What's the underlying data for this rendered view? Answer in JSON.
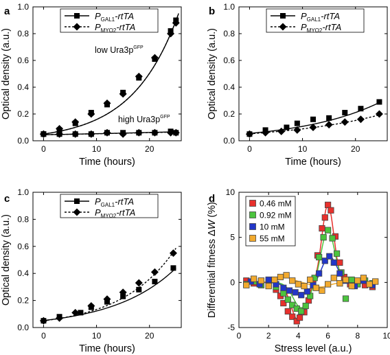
{
  "chart_data": [
    {
      "panel": "a",
      "type": "line",
      "xlabel": "Time (hours)",
      "ylabel": "Optical density (a.u.)",
      "xlim": [
        -2,
        26
      ],
      "ylim": [
        0,
        1.0
      ],
      "xticks": [
        0,
        10,
        20
      ],
      "yticks": [
        0.0,
        0.2,
        0.4,
        0.6,
        0.8,
        1.0
      ],
      "legend": [
        {
          "main": "P",
          "sub": "GAL1",
          "rest": "-rtTA",
          "marker": "square",
          "style": "solid"
        },
        {
          "main": "P",
          "sub": "MYO2",
          "rest": "-rtTA",
          "marker": "diamond",
          "style": "dashed"
        }
      ],
      "annotations": [
        {
          "text": "low Ura3p",
          "sup": "GFP"
        },
        {
          "text": "high Ura3p",
          "sup": "GFP"
        }
      ],
      "series": [
        {
          "name": "PGAL1-rtTA low",
          "marker": "square",
          "x": [
            0,
            3,
            6,
            9,
            12,
            15,
            18,
            21,
            24,
            25
          ],
          "y": [
            0.05,
            0.08,
            0.13,
            0.21,
            0.27,
            0.36,
            0.47,
            0.61,
            0.82,
            0.9
          ]
        },
        {
          "name": "PMYO2-rtTA low",
          "marker": "diamond",
          "x": [
            0,
            3,
            6,
            9,
            12,
            15,
            18,
            21,
            24,
            25
          ],
          "y": [
            0.05,
            0.09,
            0.14,
            0.2,
            0.28,
            0.35,
            0.48,
            0.62,
            0.8,
            0.88
          ]
        },
        {
          "name": "PGAL1-rtTA high",
          "marker": "square",
          "x": [
            0,
            3,
            6,
            9,
            12,
            15,
            18,
            21,
            24,
            25
          ],
          "y": [
            0.05,
            0.05,
            0.05,
            0.05,
            0.06,
            0.06,
            0.06,
            0.06,
            0.07,
            0.06
          ]
        },
        {
          "name": "PMYO2-rtTA high",
          "marker": "diamond",
          "x": [
            0,
            3,
            6,
            9,
            12,
            15,
            18,
            21,
            24,
            25
          ],
          "y": [
            0.05,
            0.05,
            0.05,
            0.05,
            0.06,
            0.05,
            0.06,
            0.06,
            0.06,
            0.06
          ]
        }
      ],
      "fits": [
        {
          "style": "solid",
          "a": 0.05,
          "k": 0.1155,
          "x": [
            0,
            25.5
          ]
        },
        {
          "style": "dashed",
          "a": 0.05,
          "k": 0.1155,
          "x": [
            0,
            25.5
          ]
        },
        {
          "style": "solid",
          "a": 0.045,
          "k": 0.016,
          "x": [
            0,
            25.5
          ]
        },
        {
          "style": "dashed",
          "a": 0.045,
          "k": 0.015,
          "x": [
            0,
            25.5
          ]
        }
      ]
    },
    {
      "panel": "b",
      "type": "line",
      "xlabel": "Time (hours)",
      "ylabel": "Optical density (a.u.)",
      "xlim": [
        -2,
        26
      ],
      "ylim": [
        0,
        1.0
      ],
      "xticks": [
        0,
        10,
        20
      ],
      "yticks": [
        0.0,
        0.2,
        0.4,
        0.6,
        0.8,
        1.0
      ],
      "legend": [
        {
          "main": "P",
          "sub": "GAL1",
          "rest": "-rtTA",
          "marker": "square",
          "style": "solid"
        },
        {
          "main": "P",
          "sub": "MYO2",
          "rest": "-rtTA",
          "marker": "diamond",
          "style": "dashed"
        }
      ],
      "series": [
        {
          "name": "PGAL1-rtTA",
          "marker": "square",
          "x": [
            0,
            3,
            7,
            9,
            12,
            15,
            18,
            21,
            24.5
          ],
          "y": [
            0.05,
            0.08,
            0.1,
            0.13,
            0.16,
            0.17,
            0.21,
            0.24,
            0.29
          ]
        },
        {
          "name": "PMYO2-rtTA",
          "marker": "diamond",
          "x": [
            0,
            3,
            6,
            9,
            12,
            15,
            18,
            21,
            24.5
          ],
          "y": [
            0.05,
            0.06,
            0.07,
            0.08,
            0.1,
            0.12,
            0.14,
            0.16,
            0.2
          ]
        }
      ],
      "fits": [
        {
          "style": "solid",
          "a": 0.055,
          "k": 0.0672,
          "x": [
            0,
            25
          ]
        },
        {
          "style": "dashed",
          "a": 0.052,
          "k": 0.0535,
          "x": [
            0,
            25
          ]
        }
      ]
    },
    {
      "panel": "c",
      "type": "line",
      "xlabel": "Time (hours)",
      "ylabel": "Optical density (a.u.)",
      "xlim": [
        -2,
        26
      ],
      "ylim": [
        0,
        1.0
      ],
      "xticks": [
        0,
        10,
        20
      ],
      "yticks": [
        0.0,
        0.2,
        0.4,
        0.6,
        0.8,
        1.0
      ],
      "legend": [
        {
          "main": "P",
          "sub": "GAL1",
          "rest": "-rtTA",
          "marker": "square",
          "style": "solid"
        },
        {
          "main": "P",
          "sub": "MYO2",
          "rest": "-rtTA",
          "marker": "diamond",
          "style": "dashed"
        }
      ],
      "series": [
        {
          "name": "PGAL1-rtTA",
          "marker": "square",
          "x": [
            0,
            3,
            7,
            9,
            12,
            15,
            18,
            21,
            24.5
          ],
          "y": [
            0.05,
            0.08,
            0.11,
            0.15,
            0.19,
            0.23,
            0.28,
            0.34,
            0.44
          ]
        },
        {
          "name": "PMYO2-rtTA",
          "marker": "diamond",
          "x": [
            0,
            3,
            6,
            9,
            12,
            15,
            18,
            21,
            24.5
          ],
          "y": [
            0.05,
            0.07,
            0.11,
            0.16,
            0.21,
            0.26,
            0.33,
            0.41,
            0.55
          ]
        }
      ],
      "fits": [
        {
          "style": "solid",
          "a": 0.052,
          "k": 0.0854,
          "x": [
            0,
            25
          ]
        },
        {
          "style": "dashed",
          "a": 0.05,
          "k": 0.0985,
          "x": [
            0,
            25
          ]
        }
      ]
    },
    {
      "panel": "d",
      "type": "scatter",
      "xlabel": "Stress level (a.u.)",
      "ylabel": "Differential fitness ΔW (%)",
      "ylabel_prefix": "Differential fitness Δ",
      "ylabel_var": "W",
      "ylabel_suffix": " (%)",
      "xlim": [
        0,
        10
      ],
      "ylim": [
        -5,
        10
      ],
      "xticks": [
        0,
        2,
        4,
        6,
        8,
        10
      ],
      "yticks": [
        -5,
        0,
        5,
        10
      ],
      "legend": [
        "0.46 mM",
        "0.92 mM",
        "10 mM",
        "55 mM"
      ],
      "series": [
        {
          "name": "0.46 mM",
          "color": "#e8302c",
          "x": [
            0.5,
            1.0,
            1.5,
            2.0,
            2.5,
            2.8,
            3.0,
            3.3,
            3.6,
            3.9,
            4.1,
            4.4,
            4.7,
            5.0,
            5.3,
            5.6,
            5.8,
            6.0,
            6.2,
            6.5,
            6.8,
            7.1,
            7.5,
            8.0,
            8.5,
            9.0
          ],
          "y": [
            0.2,
            -0.1,
            0.1,
            -0.3,
            -0.8,
            -1.5,
            -2.3,
            -3.2,
            -3.8,
            -4.3,
            -3.9,
            -3.3,
            -2.0,
            0.3,
            3.0,
            6.0,
            7.2,
            8.6,
            8.0,
            5.1,
            2.2,
            0.6,
            -0.2,
            0.1,
            -0.3,
            -0.5
          ]
        },
        {
          "name": "0.92 mM",
          "color": "#4cc43e",
          "x": [
            0.5,
            1.0,
            1.5,
            2.0,
            2.5,
            3.0,
            3.3,
            3.6,
            3.9,
            4.2,
            4.5,
            4.8,
            5.1,
            5.4,
            5.7,
            6.0,
            6.3,
            6.6,
            6.9,
            7.2,
            7.6,
            8.0,
            8.5,
            9.0
          ],
          "y": [
            -0.2,
            0.1,
            -0.3,
            0.2,
            -0.5,
            -1.2,
            -1.9,
            -2.5,
            -2.9,
            -3.2,
            -2.6,
            -1.5,
            0.5,
            2.8,
            5.0,
            5.8,
            4.9,
            3.2,
            1.1,
            -1.8,
            0.3,
            -0.2,
            0.2,
            -0.1
          ]
        },
        {
          "name": "10 mM",
          "color": "#2236c8",
          "x": [
            0.8,
            1.4,
            2.0,
            2.5,
            3.0,
            3.4,
            3.8,
            4.2,
            4.6,
            5.0,
            5.4,
            5.8,
            6.1,
            6.4,
            6.8,
            7.2,
            7.8,
            8.4,
            9.0
          ],
          "y": [
            0.1,
            -0.2,
            0.3,
            -0.2,
            -0.6,
            -0.9,
            -1.1,
            -1.4,
            -1.0,
            -0.3,
            1.0,
            2.4,
            2.9,
            2.2,
            1.0,
            0.2,
            -0.4,
            0.2,
            -0.3
          ]
        },
        {
          "name": "55 mM",
          "color": "#f2aa2e",
          "x": [
            0.5,
            1.0,
            1.5,
            2.0,
            2.4,
            2.8,
            3.2,
            3.6,
            4.0,
            4.4,
            4.8,
            5.2,
            5.6,
            6.0,
            6.4,
            6.8,
            7.2,
            7.6,
            8.0,
            8.4,
            8.8,
            9.2
          ],
          "y": [
            -0.3,
            0.4,
            0.2,
            -0.4,
            0.3,
            0.6,
            0.8,
            0.2,
            -0.2,
            -0.4,
            0.3,
            -0.6,
            -0.9,
            -0.2,
            0.5,
            -0.1,
            0.3,
            -0.4,
            0.2,
            0.5,
            -0.2,
            0.1
          ]
        }
      ],
      "fits": [
        {
          "color": "#e8302c",
          "a1": -4.2,
          "m1": 4.0,
          "s1": 0.5,
          "a2": 8.6,
          "m2": 6.0,
          "s2": 0.4,
          "x": [
            0.3,
            9.3
          ]
        },
        {
          "color": "#4cc43e",
          "a1": -2.8,
          "m1": 4.2,
          "s1": 0.55,
          "a2": 5.8,
          "m2": 6.0,
          "s2": 0.45,
          "x": [
            0.3,
            9.3
          ]
        },
        {
          "color": "#2236c8",
          "a1": -1.3,
          "m1": 4.1,
          "s1": 0.7,
          "a2": 2.9,
          "m2": 6.1,
          "s2": 0.5,
          "x": [
            0.3,
            9.3
          ]
        },
        {
          "color": "#f2aa2e",
          "a1": -0.5,
          "m1": 5.5,
          "s1": 0.6,
          "a2": 0.6,
          "m2": 3.0,
          "s2": 0.6,
          "x": [
            0.3,
            9.3
          ]
        }
      ]
    }
  ]
}
